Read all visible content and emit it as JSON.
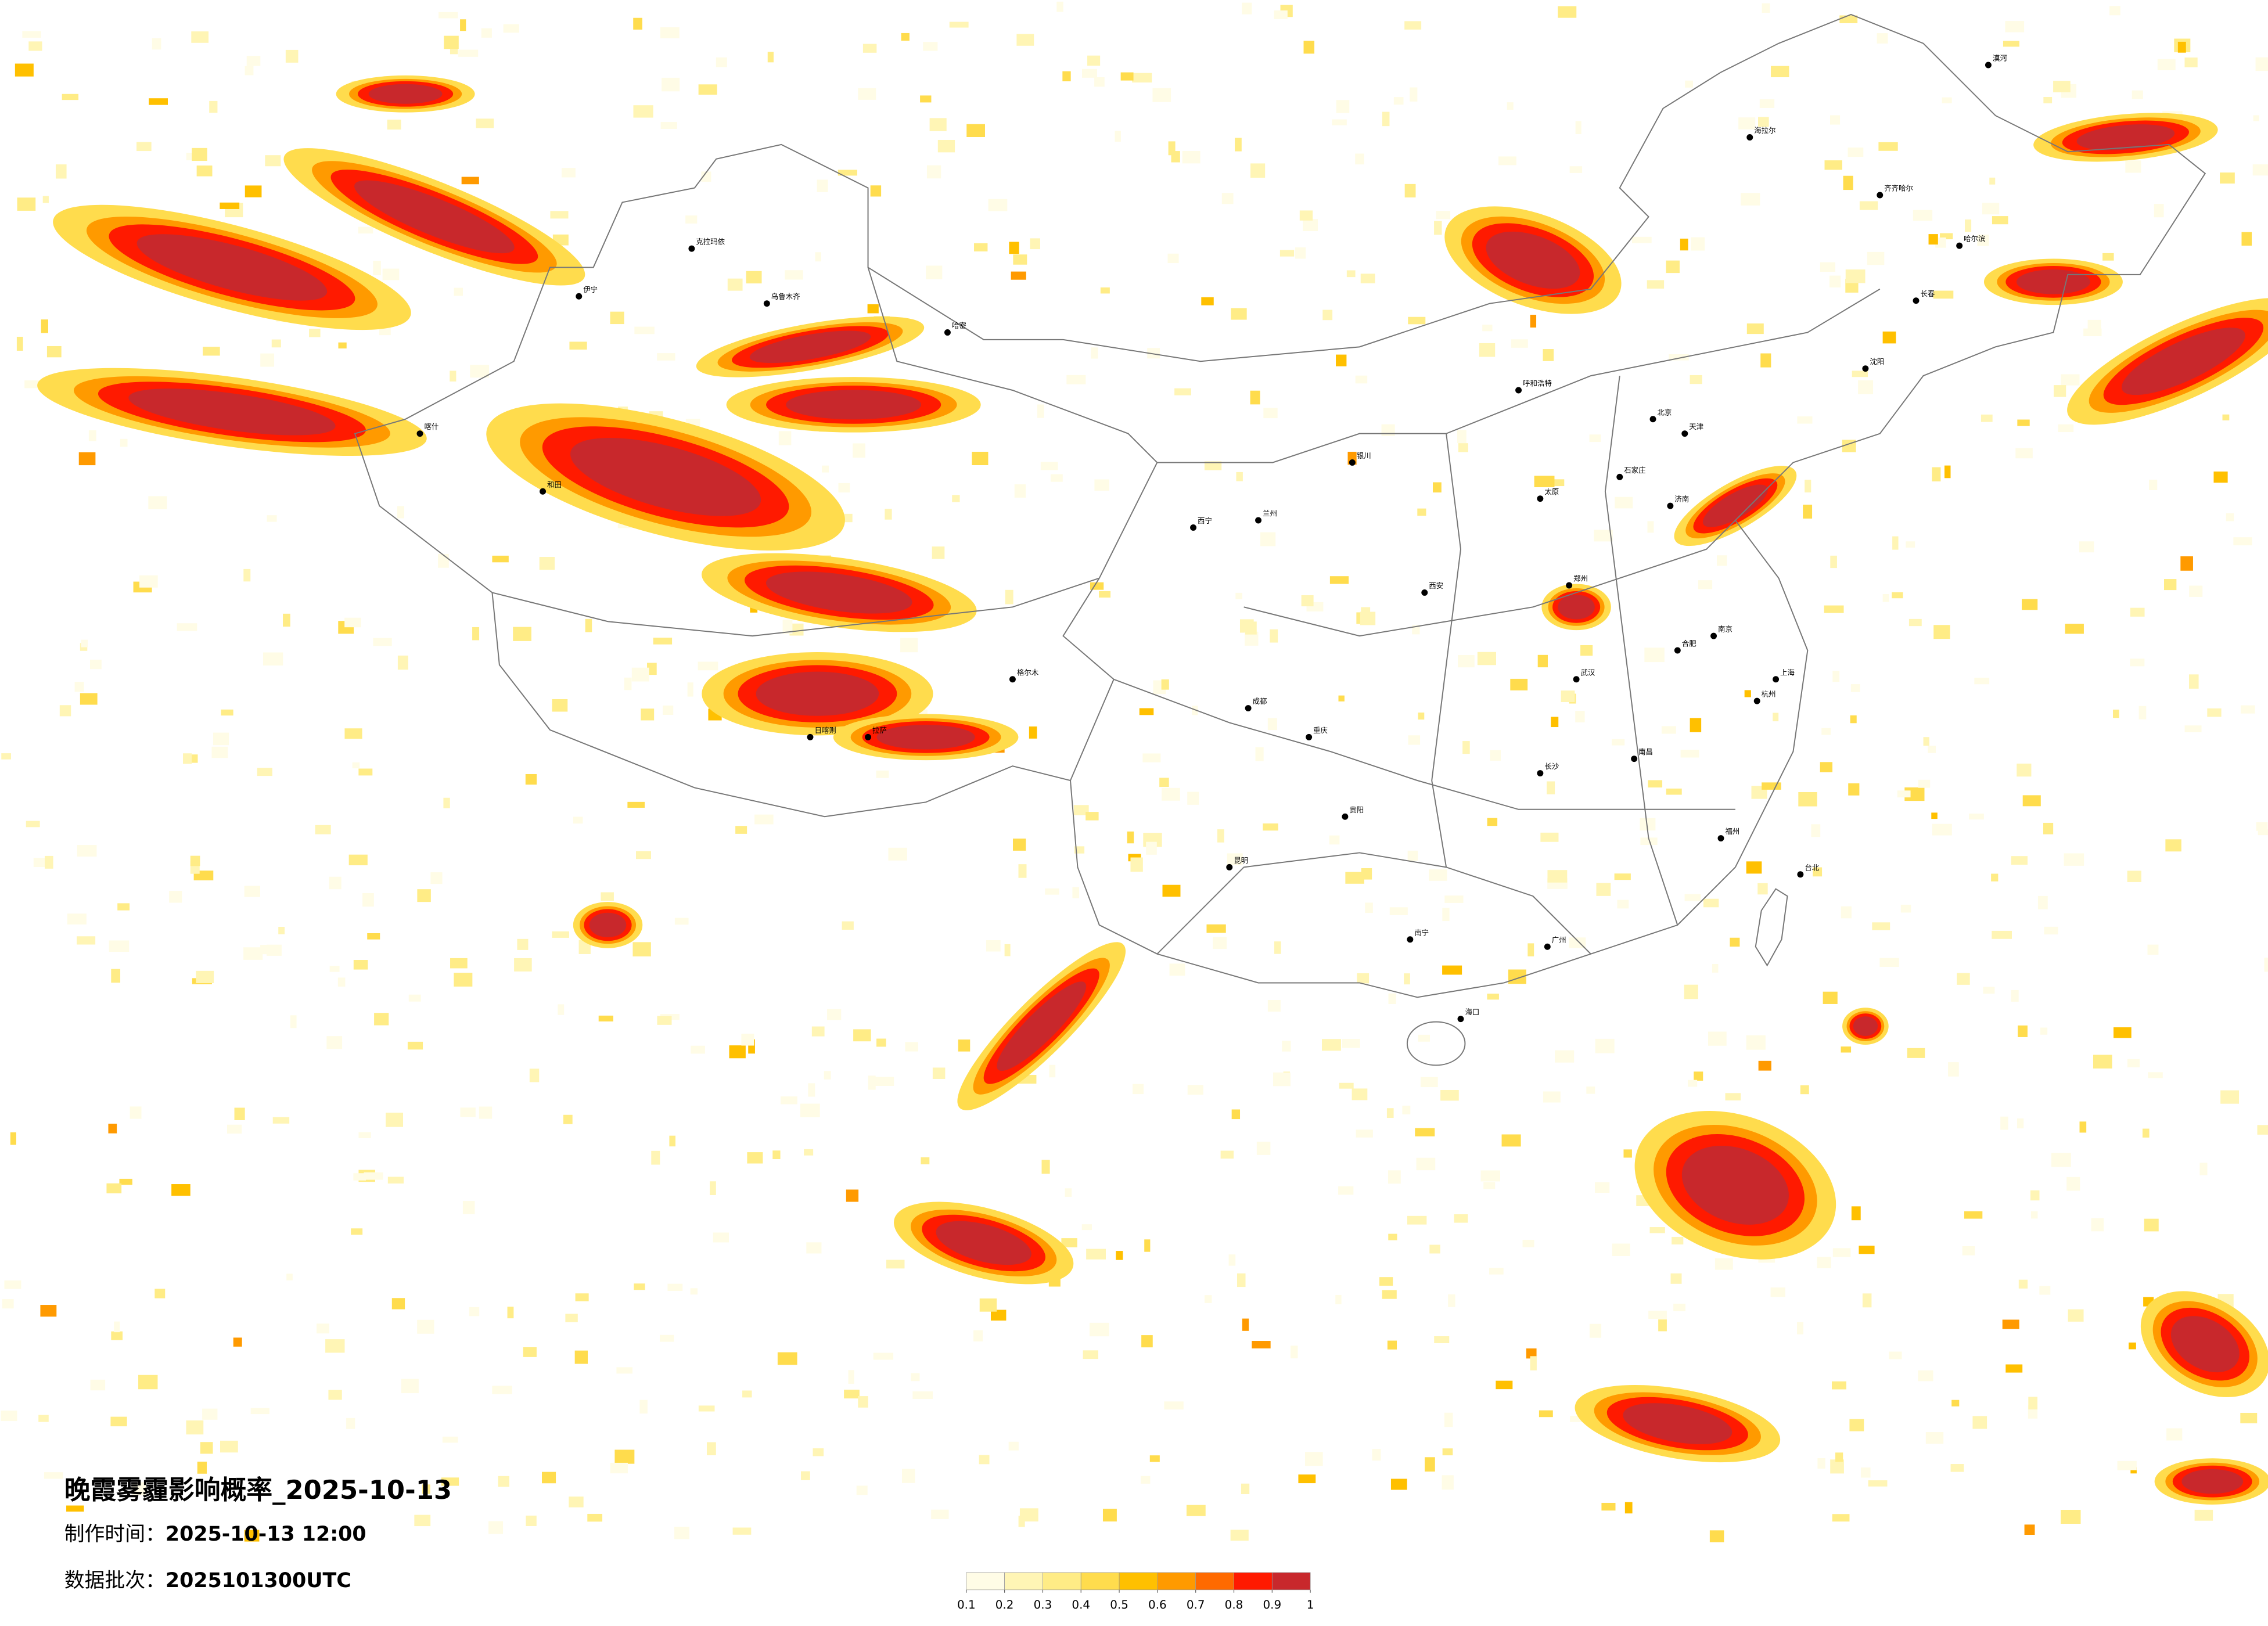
{
  "title": "晚霞雾霾影响概率_2025-10-13",
  "info": [
    {
      "label": "制作时间：",
      "value": "2025-10-13 12:00"
    },
    {
      "label": "数据批次：",
      "value": "2025101300UTC"
    }
  ],
  "legend": {
    "ticks": [
      0.1,
      0.2,
      0.3,
      0.4,
      0.5,
      0.6,
      0.7,
      0.8,
      0.9,
      1
    ],
    "colors": [
      "#fffce6",
      "#fff5b5",
      "#ffec86",
      "#ffdc4d",
      "#ffc000",
      "#ff9a00",
      "#ff6a00",
      "#ff1a00",
      "#c8282c"
    ]
  },
  "cities": [
    "北京",
    "上海",
    "广州",
    "天津",
    "重庆",
    "哈尔滨",
    "长春",
    "沈阳",
    "石家庄",
    "太原",
    "呼和浩特",
    "济南",
    "郑州",
    "西安",
    "兰州",
    "西宁",
    "银川",
    "乌鲁木齐",
    "拉萨",
    "武汉",
    "长沙",
    "南昌",
    "合肥",
    "南京",
    "杭州",
    "福州",
    "贵阳",
    "昆明",
    "南宁",
    "海口",
    "台北",
    "喀什",
    "和田",
    "哈密",
    "克拉玛依",
    "漠河",
    "海拉尔",
    "齐齐哈尔",
    "伊宁",
    "格尔木",
    "日喀则",
    "成都"
  ]
}
